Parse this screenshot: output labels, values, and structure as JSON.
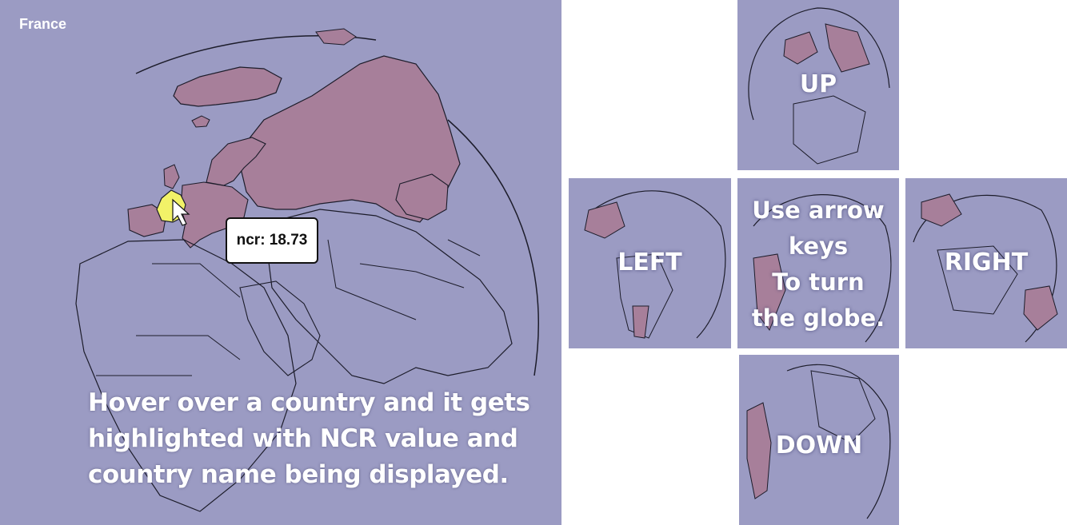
{
  "main": {
    "country_name": "France",
    "tooltip": "ncr: 18.73",
    "caption_lines": [
      "Hover over a country and it gets",
      "highlighted with NCR value and",
      "country name being displayed."
    ]
  },
  "tiles": {
    "up": "UP",
    "left": "LEFT",
    "right": "RIGHT",
    "down": "DOWN",
    "center_lines": [
      "Use arrow",
      "keys",
      "To turn",
      "the globe."
    ]
  },
  "colors": {
    "background": "#9b9bc3",
    "highlight_fill": "#a77f9a",
    "hover_fill": "#f2f268",
    "border": "#1c1c2a"
  }
}
